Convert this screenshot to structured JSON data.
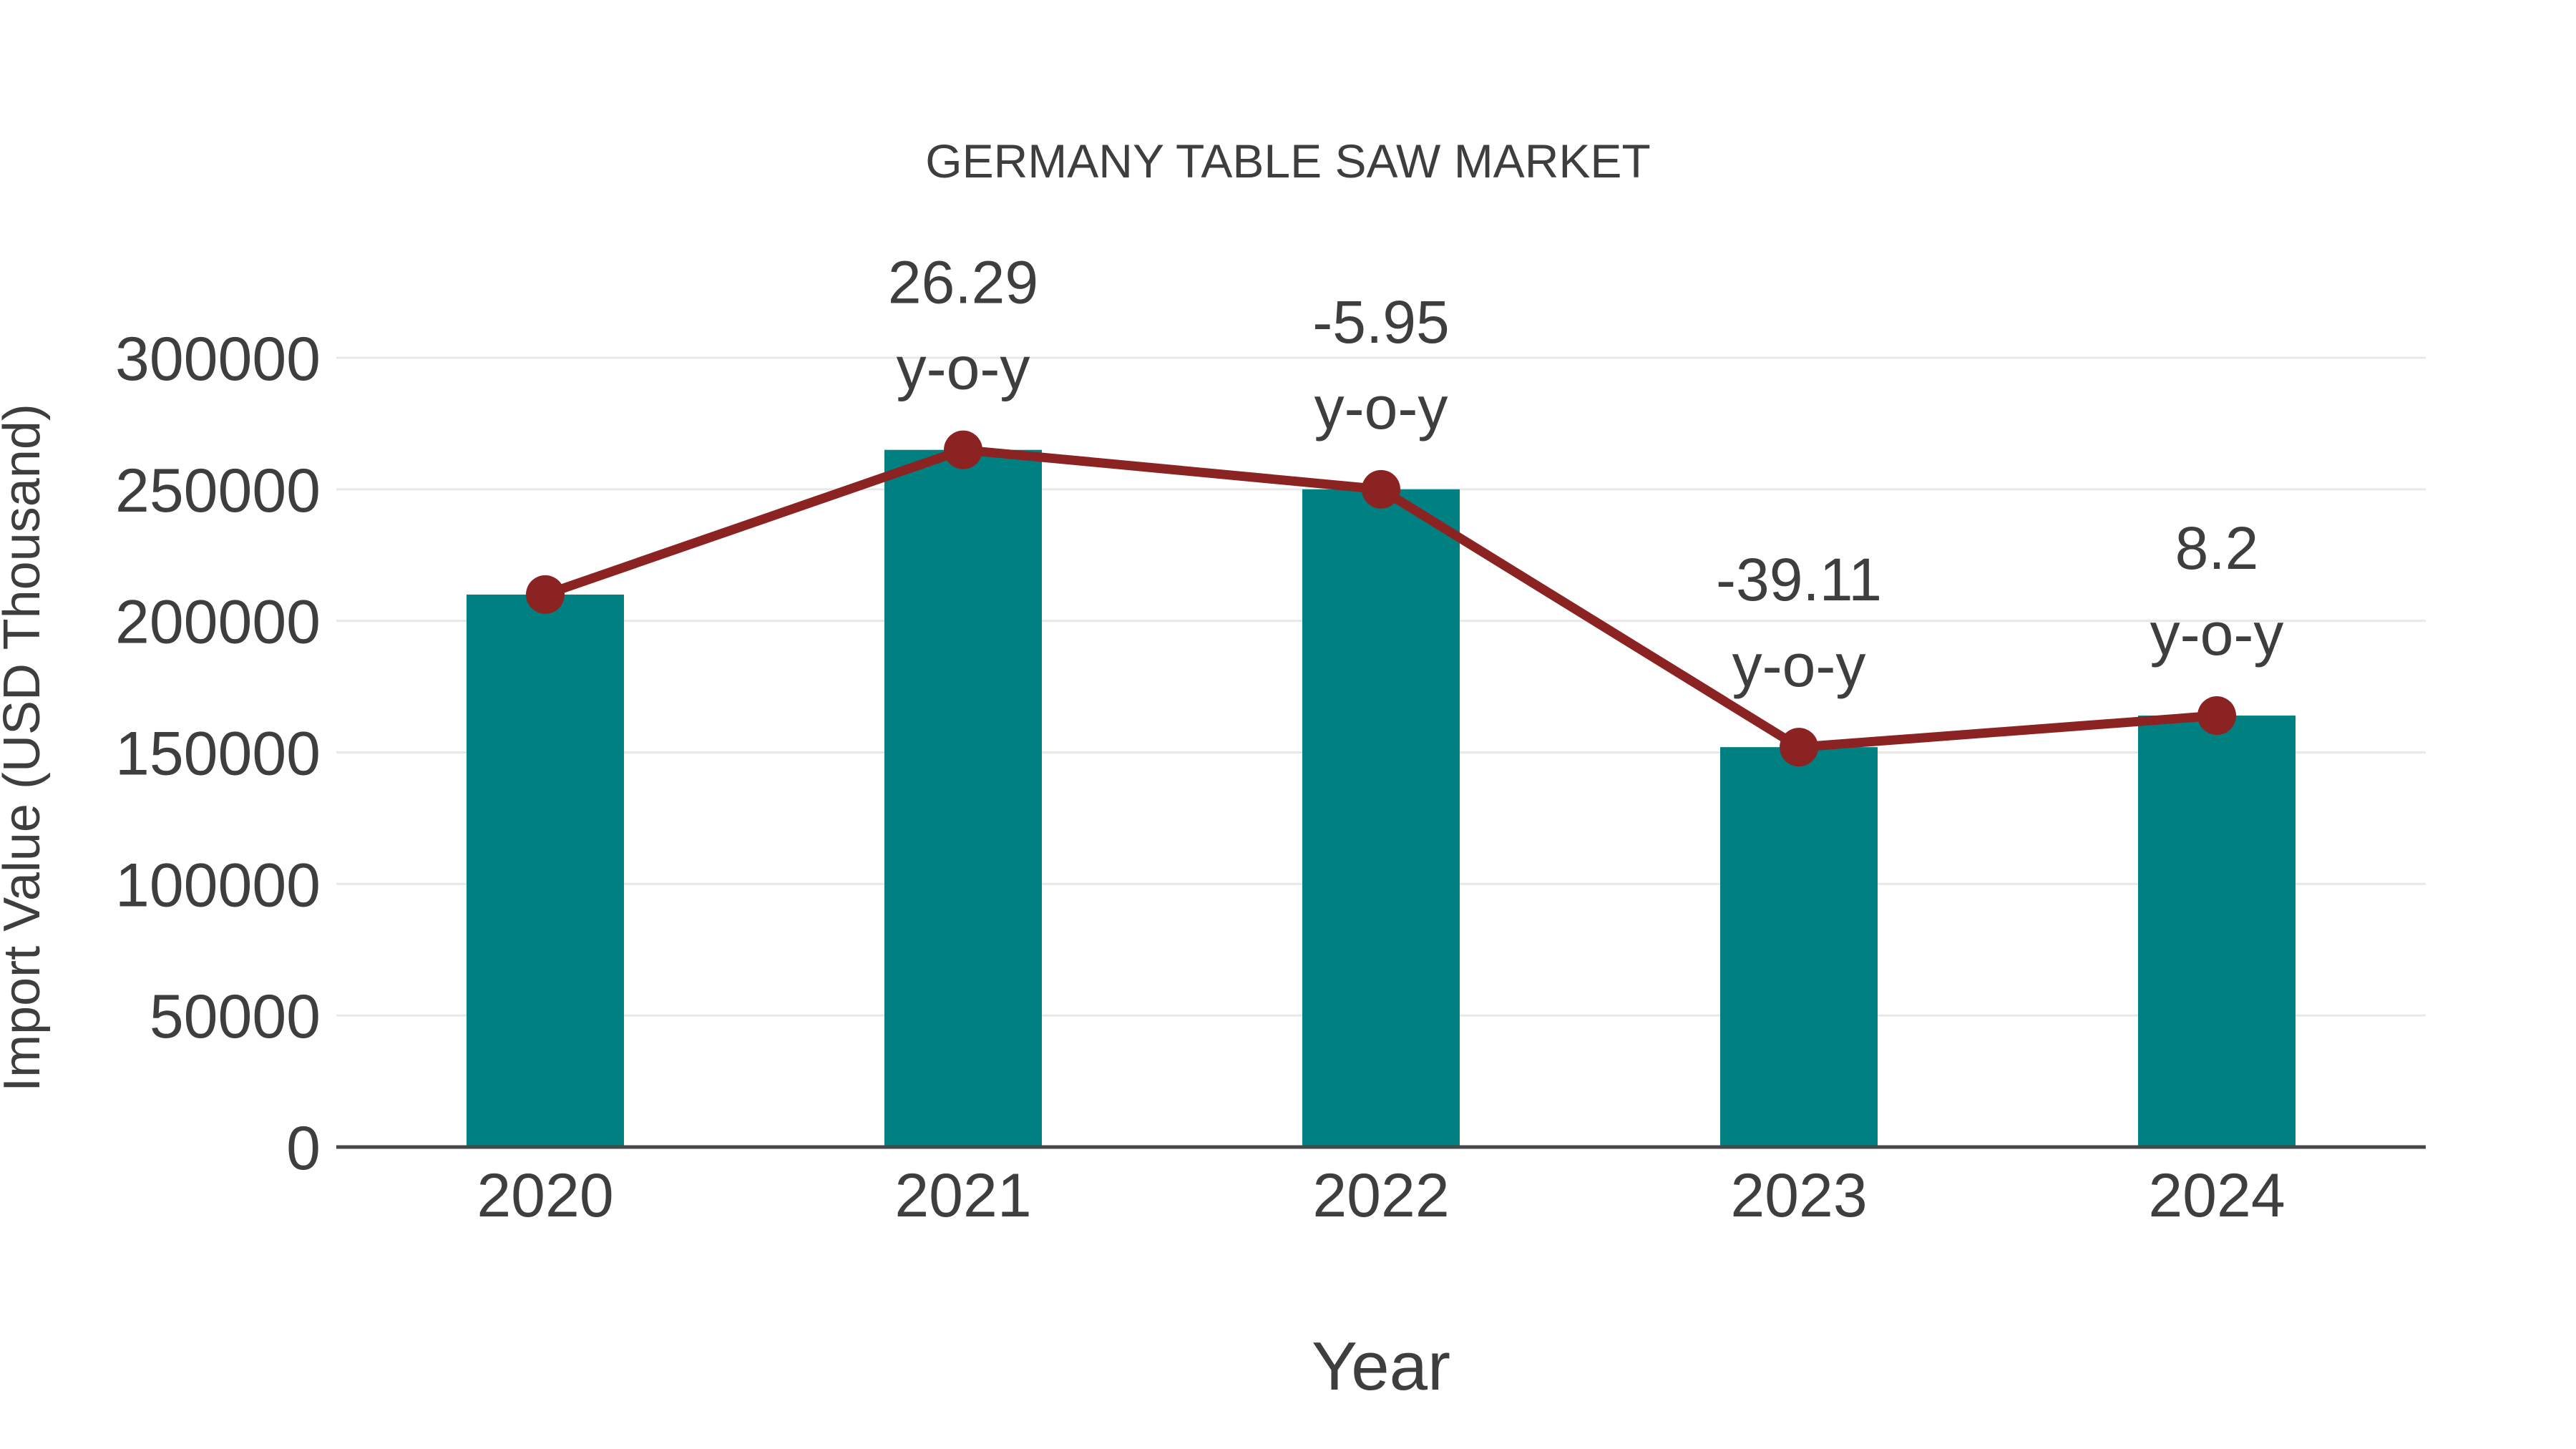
{
  "chart_data": {
    "type": "bar",
    "title": "GERMANY TABLE SAW MARKET",
    "xlabel": "Year",
    "ylabel": "Import Value (USD Thousand)",
    "categories": [
      "2020",
      "2021",
      "2022",
      "2023",
      "2024"
    ],
    "series": [
      {
        "name": "Import Value",
        "type": "bar",
        "color": "#008080",
        "values": [
          210000,
          265000,
          250000,
          152000,
          164000
        ]
      },
      {
        "name": "Import Value trend",
        "type": "line",
        "color": "#8B2323",
        "values": [
          210000,
          265000,
          250000,
          152000,
          164000
        ]
      }
    ],
    "annotations": [
      {
        "category": "2021",
        "value_line": "26.29",
        "unit_line": "y-o-y"
      },
      {
        "category": "2022",
        "value_line": "-5.95",
        "unit_line": "y-o-y"
      },
      {
        "category": "2023",
        "value_line": "-39.11",
        "unit_line": "y-o-y"
      },
      {
        "category": "2024",
        "value_line": "8.2",
        "unit_line": "y-o-y"
      }
    ],
    "yticks": [
      0,
      50000,
      100000,
      150000,
      200000,
      250000,
      300000
    ],
    "ylim": [
      0,
      300000
    ],
    "grid": true,
    "legend_position": "none",
    "colors": {
      "bar": "#008080",
      "line": "#8B2323",
      "marker": "#8B2323",
      "gridline": "#e8e8e8",
      "axis_line": "#474747",
      "text": "#3e3e3e",
      "background": "#ffffff"
    }
  }
}
